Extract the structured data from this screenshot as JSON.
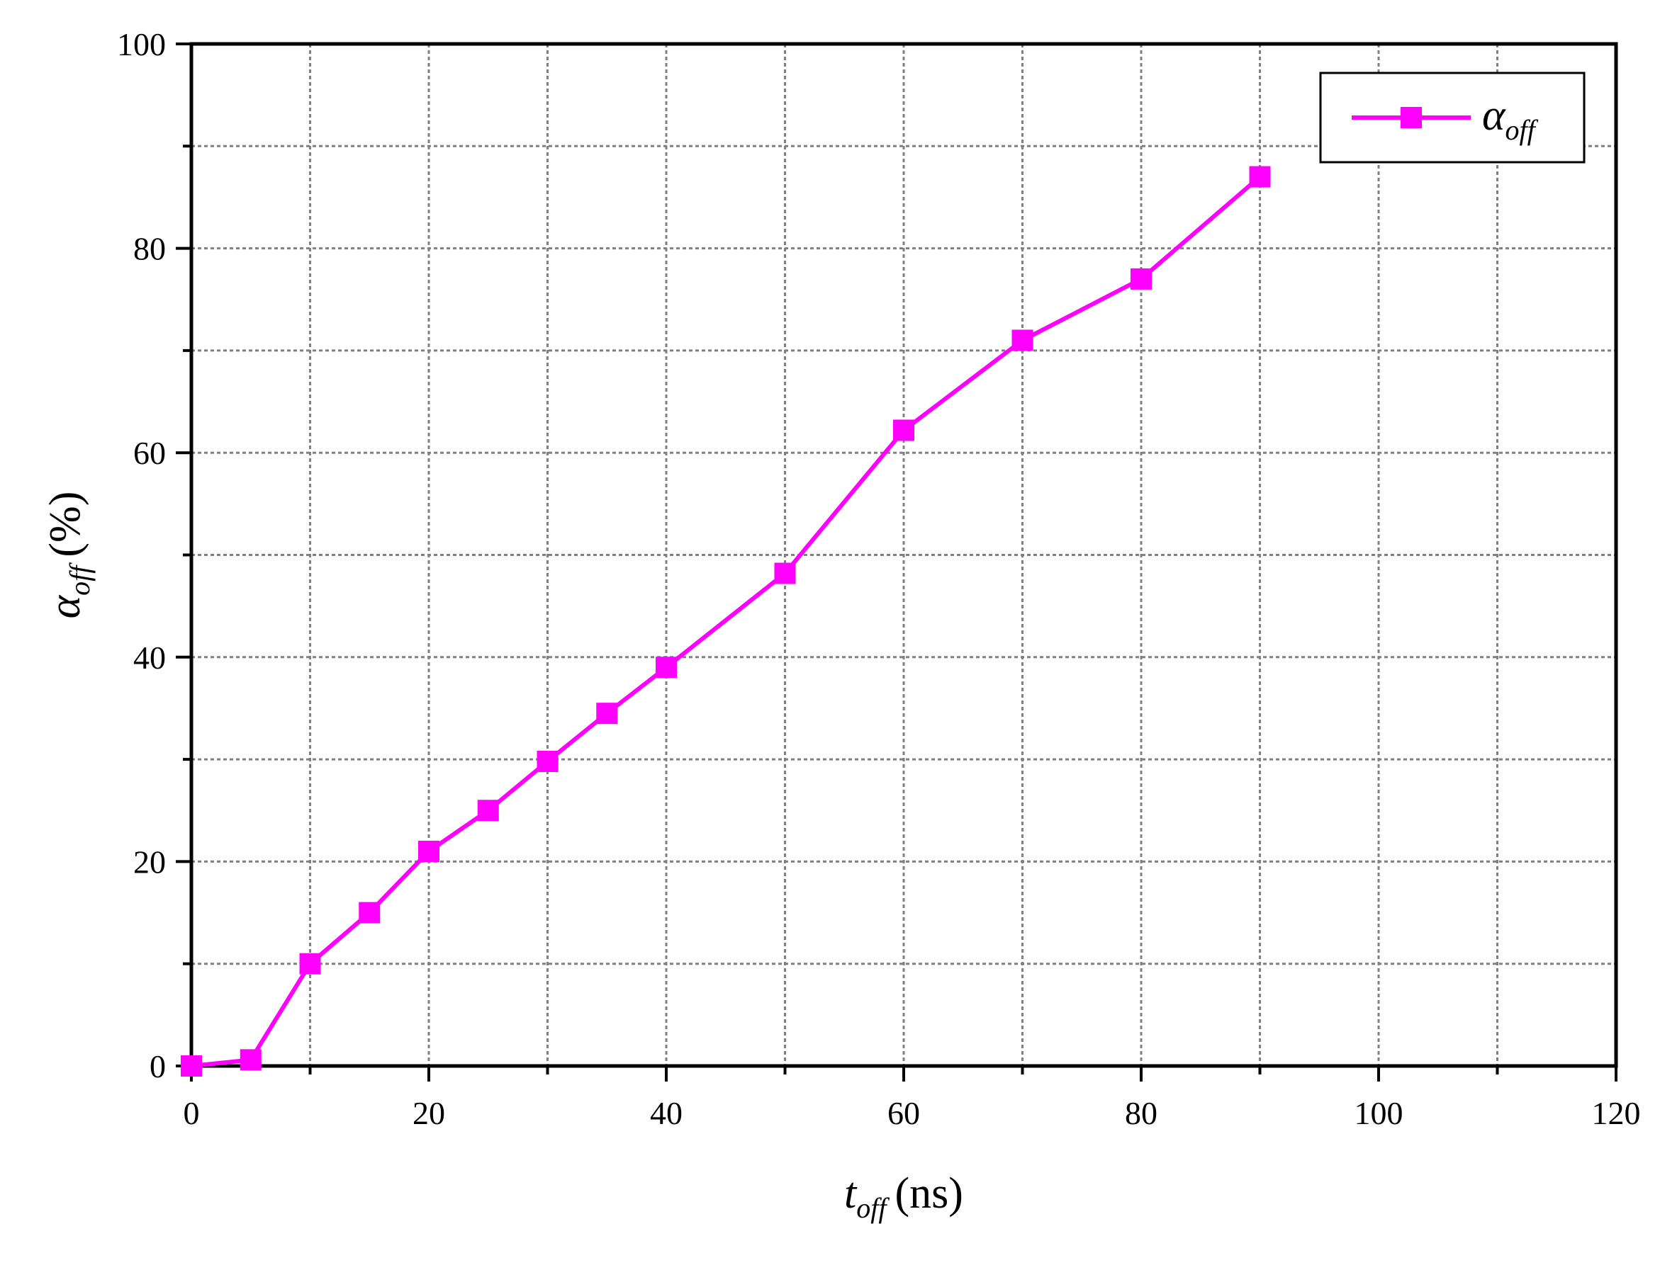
{
  "chart_data": {
    "type": "line",
    "title": "",
    "xlabel": {
      "main": "t",
      "sub": "off",
      "unit": "(ns)"
    },
    "ylabel": {
      "main": "α",
      "sub": "off",
      "unit": "(%)"
    },
    "xlim": [
      0,
      120
    ],
    "ylim": [
      0,
      100
    ],
    "x_major_ticks": [
      0,
      20,
      40,
      60,
      80,
      100,
      120
    ],
    "x_major_tick_labels": [
      "0",
      "20",
      "40",
      "60",
      "80",
      "100",
      "120"
    ],
    "x_minor_ticks": [
      10,
      30,
      50,
      70,
      90,
      110
    ],
    "y_major_ticks": [
      0,
      20,
      40,
      60,
      80,
      100
    ],
    "y_major_tick_labels": [
      "0",
      "20",
      "40",
      "60",
      "80",
      "100"
    ],
    "y_minor_ticks": [
      10,
      30,
      50,
      70,
      90
    ],
    "grid": true,
    "legend": {
      "position": "top-right"
    },
    "series": [
      {
        "name": {
          "main": "α",
          "sub": "off"
        },
        "color": "#ff00ff",
        "marker": "square",
        "x": [
          0,
          5,
          10,
          15,
          20,
          25,
          30,
          35,
          40,
          50,
          60,
          70,
          80,
          90
        ],
        "y": [
          0,
          0.6,
          10,
          15,
          21,
          25,
          29.8,
          34.5,
          39,
          48.2,
          62.2,
          71,
          77,
          87
        ]
      }
    ]
  }
}
